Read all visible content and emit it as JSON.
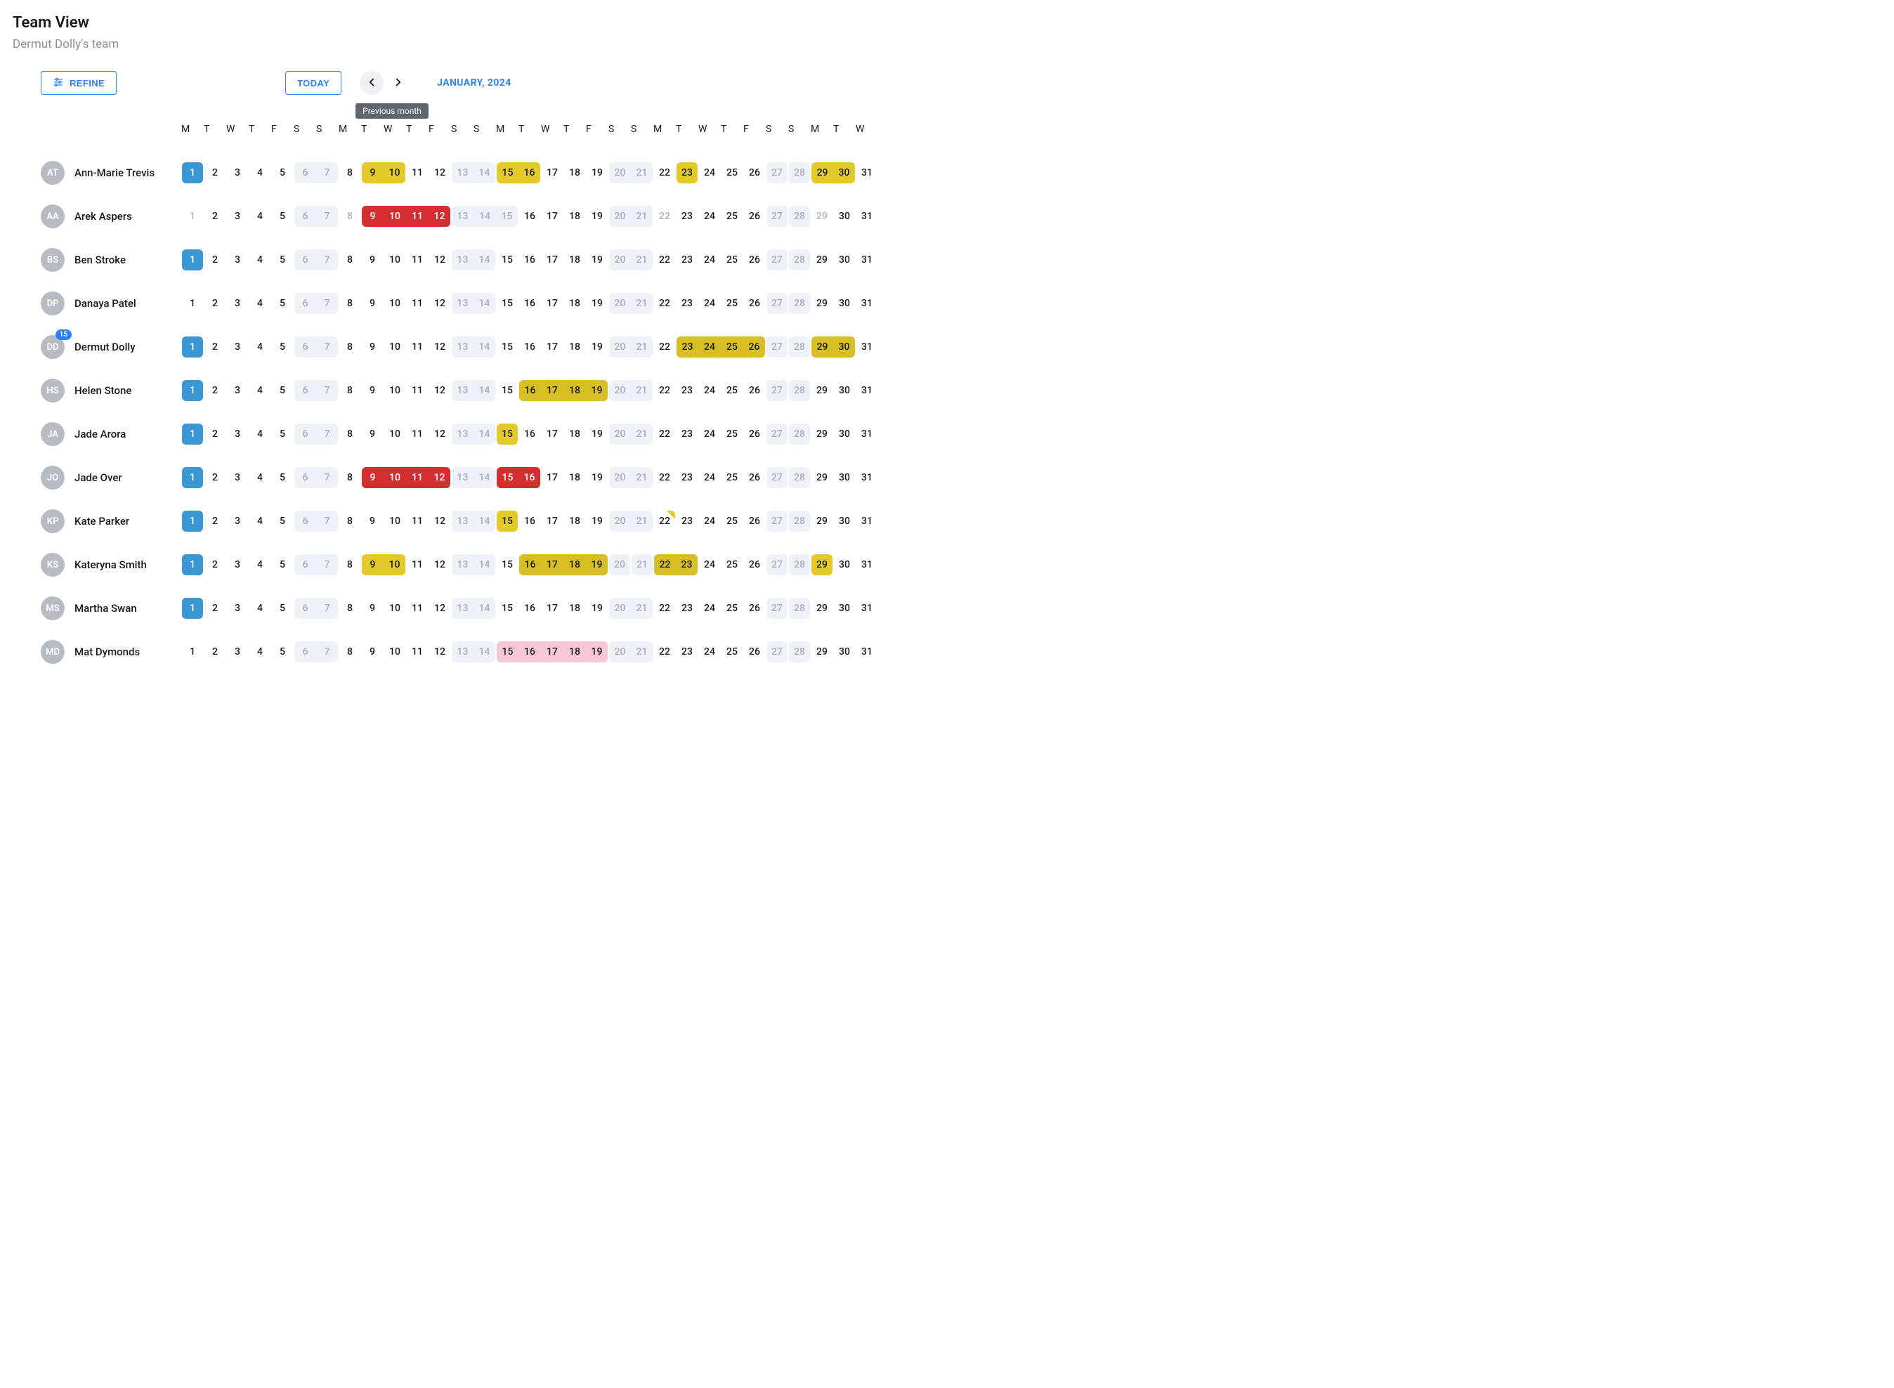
{
  "header": {
    "title": "Team View",
    "subtitle": "Dermut Dolly's team"
  },
  "toolbar": {
    "refine_label": "REFINE",
    "today_label": "TODAY",
    "month_label": "JANUARY, 2024",
    "prev_tooltip": "Previous month"
  },
  "colors": {
    "accent": "#2d7ff9",
    "today_bg": "#3a97d4",
    "muted_bg": "#eef2f8",
    "muted_text": "#a7afbb",
    "yellow": "#e3ca2a",
    "yellow_olive": "#d7be25",
    "red": "#d32f2f",
    "pink": "#f7c6d9",
    "avatar_bg": "#b7bcc4",
    "tooltip_bg": "#5f6670"
  },
  "day_headers": [
    "M",
    "T",
    "W",
    "T",
    "F",
    "S",
    "S",
    "M",
    "T",
    "W",
    "T",
    "F",
    "S",
    "S",
    "M",
    "T",
    "W",
    "T",
    "F",
    "S",
    "S",
    "M",
    "T",
    "W",
    "T",
    "F",
    "S",
    "S",
    "M",
    "T",
    "W"
  ],
  "weekend_days": [
    6,
    7,
    13,
    14,
    20,
    21,
    27,
    28
  ],
  "people": [
    {
      "initials": "AT",
      "name": "Ann-Marie Trevis",
      "badge": null,
      "days": {
        "1": "today",
        "9": "yellow",
        "10": "yellow",
        "13": "muted",
        "14": "muted",
        "15": "yellow",
        "16": "yellow",
        "23": "yellow",
        "27": "mutedtxt",
        "28": "mutedtxt",
        "29": "yellow",
        "30": "yellow"
      }
    },
    {
      "initials": "AA",
      "name": "Arek Aspers",
      "badge": null,
      "days": {
        "1": "mutedtxt",
        "8": "mutedtxt",
        "9": "red",
        "10": "red",
        "11": "red",
        "12": "red",
        "13": "muted",
        "14": "muted",
        "15": "muted",
        "22": "mutedtxt",
        "27": "mutedtxt",
        "28": "mutedtxt",
        "29": "mutedtxt"
      }
    },
    {
      "initials": "BS",
      "name": "Ben Stroke",
      "badge": null,
      "days": {
        "1": "today",
        "13": "muted",
        "14": "muted",
        "27": "mutedtxt",
        "28": "mutedtxt"
      }
    },
    {
      "initials": "DP",
      "name": "Danaya Patel",
      "badge": null,
      "days": {
        "13": "muted",
        "14": "muted",
        "27": "mutedtxt",
        "28": "mutedtxt"
      }
    },
    {
      "initials": "DD",
      "name": "Dermut Dolly",
      "badge": "15",
      "days": {
        "1": "today",
        "13": "muted",
        "14": "muted",
        "23": "yellow2",
        "24": "yellow2",
        "25": "yellow2",
        "26": "yellow2",
        "27": "mutedtxt",
        "28": "mutedtxt",
        "29": "yellow2",
        "30": "yellow2"
      }
    },
    {
      "initials": "HS",
      "name": "Helen Stone",
      "badge": null,
      "days": {
        "1": "today",
        "13": "muted",
        "14": "muted",
        "16": "yellow2",
        "17": "yellow2",
        "18": "yellow2",
        "19": "yellow2",
        "27": "mutedtxt",
        "28": "mutedtxt"
      }
    },
    {
      "initials": "JA",
      "name": "Jade Arora",
      "badge": null,
      "days": {
        "1": "today",
        "13": "muted",
        "14": "muted",
        "15": "yellow",
        "27": "mutedtxt",
        "28": "mutedtxt"
      }
    },
    {
      "initials": "JO",
      "name": "Jade Over",
      "badge": null,
      "days": {
        "1": "today",
        "9": "red",
        "10": "red",
        "11": "red",
        "12": "red",
        "13": "muted",
        "14": "muted",
        "15": "red",
        "16": "red",
        "27": "mutedtxt",
        "28": "mutedtxt"
      }
    },
    {
      "initials": "KP",
      "name": "Kate Parker",
      "badge": null,
      "days": {
        "1": "today",
        "13": "muted",
        "14": "muted",
        "15": "yellow",
        "22": "dogear",
        "27": "mutedtxt",
        "28": "mutedtxt"
      }
    },
    {
      "initials": "KS",
      "name": "Kateryna Smith",
      "badge": null,
      "days": {
        "1": "today",
        "9": "yellow",
        "10": "yellow",
        "13": "muted",
        "14": "muted",
        "16": "yellow2",
        "17": "yellow2",
        "18": "yellow2",
        "19": "yellow2",
        "20": "mutedtxt",
        "21": "mutedtxt",
        "22": "yellow2",
        "23": "yellow2",
        "27": "mutedtxt",
        "28": "mutedtxt",
        "29": "yellow"
      }
    },
    {
      "initials": "MS",
      "name": "Martha Swan",
      "badge": null,
      "days": {
        "1": "today",
        "13": "muted",
        "14": "muted",
        "27": "mutedtxt",
        "28": "mutedtxt"
      }
    },
    {
      "initials": "MD",
      "name": "Mat Dymonds",
      "badge": null,
      "days": {
        "13": "muted",
        "14": "muted",
        "15": "pink",
        "16": "pink",
        "17": "pink",
        "18": "pink",
        "19": "pink",
        "27": "mutedtxt",
        "28": "mutedtxt"
      }
    }
  ]
}
